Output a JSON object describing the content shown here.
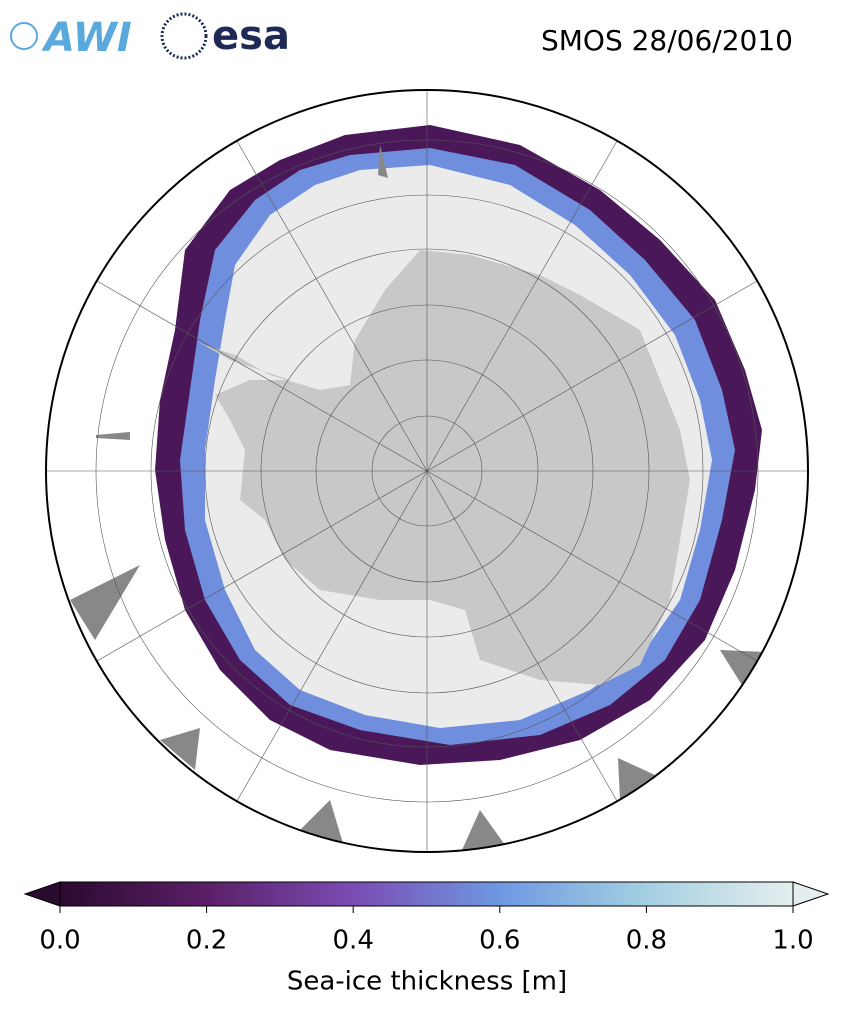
{
  "header": {
    "logos": [
      "AWI",
      "esa"
    ],
    "title": "SMOS 28/06/2010"
  },
  "colorbar": {
    "label": "Sea-ice thickness [m]",
    "lim": [
      0,
      1
    ],
    "ticks": [
      {
        "value": 0,
        "label": "0.0"
      },
      {
        "value": 0.2,
        "label": "0.2"
      },
      {
        "value": 0.4,
        "label": "0.4"
      },
      {
        "value": 0.6,
        "label": "0.6"
      },
      {
        "value": 0.8,
        "label": "0.8"
      },
      {
        "value": 1,
        "label": "1.0"
      }
    ],
    "colors": [
      "#2b0a2f",
      "#5b1f68",
      "#7a4cb3",
      "#6e98e2",
      "#a4d0e2",
      "#e4eeee"
    ],
    "extend": "both"
  }
}
